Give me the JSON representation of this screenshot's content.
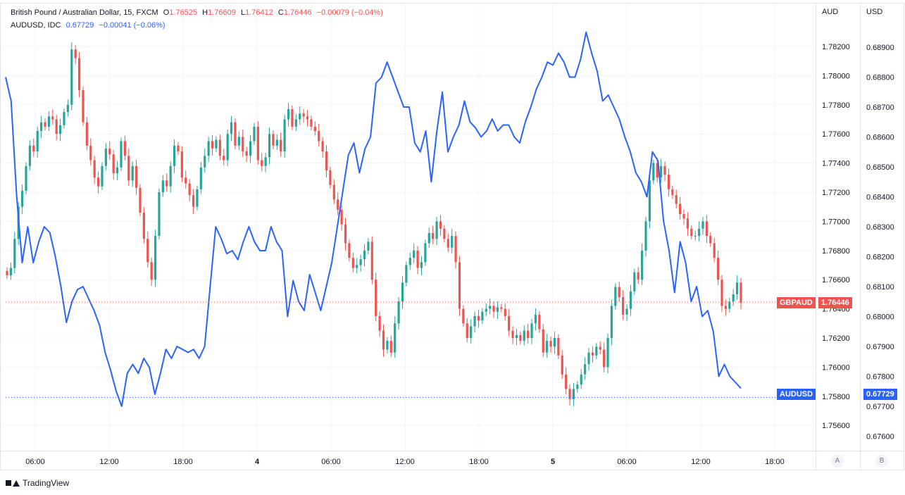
{
  "legend": {
    "main": {
      "label": "British Pound / Australian Dollar, 15, FXCM",
      "o_label": "O",
      "o": "1.76525",
      "h_label": "H",
      "h": "1.76609",
      "l_label": "L",
      "l": "1.76412",
      "c_label": "C",
      "c": "1.76446",
      "change": "−0.00079 (−0.04%)"
    },
    "overlay": {
      "label": "AUDUSD, IDC",
      "value": "0.67729",
      "change": "−0.00041 (−0.06%)"
    }
  },
  "axes": {
    "right_unit": "AUD",
    "left_unit": "USD",
    "scale_btn_a": "A",
    "scale_btn_b": "B"
  },
  "badges": {
    "gbpaud_name": "GBPAUD",
    "gbpaud_value": "1.76446",
    "audusd_name": "AUDUSD",
    "audusd_value": "0.67729"
  },
  "footer": {
    "brand": "TradingView"
  },
  "colors": {
    "up": "#26a69a",
    "down": "#ef5350",
    "overlay_line": "#2962ff",
    "grid": "#f0f3fa",
    "axis_text": "#131722"
  },
  "chart_data": {
    "type": "candlestick+line",
    "x_ticks": [
      "06:00",
      "12:00",
      "18:00",
      "4",
      "06:00",
      "12:00",
      "18:00",
      "5",
      "06:00",
      "12:00",
      "18:00"
    ],
    "aud_axis": {
      "ticks": [
        "1.78200",
        "1.78000",
        "1.77800",
        "1.77600",
        "1.77400",
        "1.77200",
        "1.77000",
        "1.76800",
        "1.76600",
        "1.76400",
        "1.76200",
        "1.76000",
        "1.75800",
        "1.75600"
      ],
      "range": [
        1.7545,
        1.7848
      ]
    },
    "usd_axis": {
      "ticks": [
        "0.68900",
        "0.68800",
        "0.68700",
        "0.68600",
        "0.68500",
        "0.68400",
        "0.68300",
        "0.68200",
        "0.68100",
        "0.68000",
        "0.67900",
        "0.67800",
        "0.67700",
        "0.67600"
      ],
      "range": [
        0.6755,
        0.6901
      ]
    },
    "gbpaud_close": [
      1.7663,
      1.7668,
      1.7688,
      1.771,
      1.7721,
      1.7738,
      1.7752,
      1.7748,
      1.7762,
      1.7768,
      1.7765,
      1.7772,
      1.777,
      1.776,
      1.7766,
      1.7775,
      1.778,
      1.7818,
      1.7812,
      1.779,
      1.7768,
      1.7752,
      1.7742,
      1.773,
      1.7724,
      1.7738,
      1.775,
      1.7746,
      1.7733,
      1.7737,
      1.7755,
      1.7745,
      1.7728,
      1.7738,
      1.7723,
      1.7706,
      1.7688,
      1.7672,
      1.766,
      1.769,
      1.772,
      1.7728,
      1.7724,
      1.7738,
      1.7752,
      1.7748,
      1.773,
      1.7726,
      1.7718,
      1.771,
      1.7722,
      1.7737,
      1.7745,
      1.7755,
      1.775,
      1.7756,
      1.7745,
      1.7742,
      1.776,
      1.7768,
      1.7752,
      1.7758,
      1.7748,
      1.7745,
      1.7755,
      1.7765,
      1.7742,
      1.7738,
      1.7744,
      1.776,
      1.7752,
      1.7756,
      1.7748,
      1.777,
      1.7777,
      1.7765,
      1.777,
      1.7774,
      1.7772,
      1.777,
      1.7765,
      1.7762,
      1.7755,
      1.7748,
      1.7735,
      1.7725,
      1.7715,
      1.7708,
      1.7698,
      1.7685,
      1.7675,
      1.7668,
      1.767,
      1.7674,
      1.768,
      1.7686,
      1.766,
      1.7635,
      1.7625,
      1.7612,
      1.7618,
      1.761,
      1.763,
      1.7645,
      1.7658,
      1.767,
      1.7675,
      1.768,
      1.7668,
      1.7672,
      1.7685,
      1.7692,
      1.7688,
      1.77,
      1.7695,
      1.7688,
      1.7682,
      1.769,
      1.7672,
      1.764,
      1.763,
      1.762,
      1.7628,
      1.7635,
      1.7632,
      1.7638,
      1.764,
      1.7642,
      1.7638,
      1.7641,
      1.764,
      1.7635,
      1.7625,
      1.762,
      1.7622,
      1.7618,
      1.7625,
      1.762,
      1.763,
      1.7636,
      1.7626,
      1.761,
      1.7618,
      1.7614,
      1.762,
      1.7608,
      1.7595,
      1.7585,
      1.7578,
      1.7585,
      1.7588,
      1.7595,
      1.7602,
      1.761,
      1.7608,
      1.7614,
      1.7612,
      1.76,
      1.762,
      1.7642,
      1.7655,
      1.7648,
      1.7636,
      1.764,
      1.7652,
      1.7665,
      1.766,
      1.768,
      1.77,
      1.7728,
      1.774,
      1.773,
      1.7738,
      1.7732,
      1.7722,
      1.7718,
      1.7712,
      1.7705,
      1.7702,
      1.7695,
      1.769,
      1.769,
      1.7695,
      1.77,
      1.769,
      1.7685,
      1.7675,
      1.766,
      1.7642,
      1.764,
      1.7645,
      1.765,
      1.7658,
      1.7644
    ],
    "audusd_line": [
      0.688,
      0.6872,
      0.684,
      0.6818,
      0.683,
      0.6818,
      0.6825,
      0.683,
      0.6828,
      0.682,
      0.681,
      0.6798,
      0.6805,
      0.6809,
      0.681,
      0.6806,
      0.6802,
      0.6797,
      0.6788,
      0.6782,
      0.6775,
      0.677,
      0.6781,
      0.6784,
      0.6781,
      0.6786,
      0.6783,
      0.6774,
      0.6781,
      0.6789,
      0.6786,
      0.679,
      0.6789,
      0.6788,
      0.6789,
      0.6786,
      0.679,
      0.681,
      0.683,
      0.6826,
      0.6821,
      0.6822,
      0.6819,
      0.6825,
      0.683,
      0.6825,
      0.6822,
      0.6822,
      0.683,
      0.6825,
      0.6822,
      0.68,
      0.6812,
      0.6805,
      0.6802,
      0.6814,
      0.6808,
      0.6802,
      0.681,
      0.6818,
      0.683,
      0.6842,
      0.6854,
      0.6858,
      0.6848,
      0.6856,
      0.686,
      0.6878,
      0.688,
      0.6885,
      0.688,
      0.6875,
      0.687,
      0.687,
      0.6858,
      0.6855,
      0.6862,
      0.6845,
      0.6862,
      0.6875,
      0.6855,
      0.686,
      0.6864,
      0.6872,
      0.6865,
      0.6863,
      0.686,
      0.6862,
      0.6866,
      0.6862,
      0.6864,
      0.6864,
      0.686,
      0.6858,
      0.6865,
      0.687,
      0.6876,
      0.688,
      0.6885,
      0.6884,
      0.6888,
      0.6885,
      0.688,
      0.688,
      0.6886,
      0.6895,
      0.6888,
      0.6882,
      0.6872,
      0.6874,
      0.687,
      0.6866,
      0.686,
      0.6855,
      0.6848,
      0.6845,
      0.684,
      0.6855,
      0.6852,
      0.6832,
      0.6822,
      0.6808,
      0.6825,
      0.6818,
      0.6805,
      0.681,
      0.68,
      0.6802,
      0.6795,
      0.678,
      0.6784,
      0.678,
      0.6778,
      0.6776
    ],
    "last_values": {
      "gbpaud": 1.76446,
      "audusd": 0.67729
    }
  }
}
